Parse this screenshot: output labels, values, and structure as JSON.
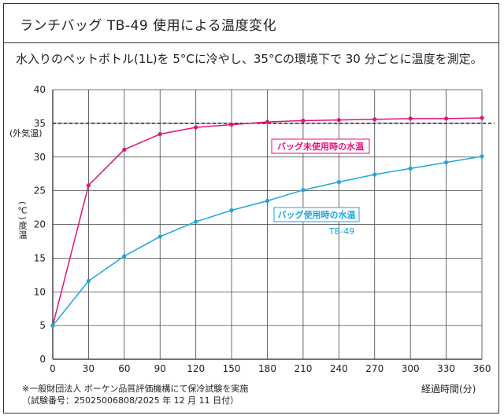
{
  "header": {
    "title": "ランチバッグ TB-49 使用による温度変化"
  },
  "subtitle": "水入りのペットボトル(1L)を 5°Cに冷やし、35°Cの環境下で 30 分ごとに温度を測定。",
  "notes": {
    "line1": "※一般財団法人 ボーケン品質評価機構にて保冷試験を実施",
    "line2": "（試験番号：25025006808/2025 年 12 月 11 日付）"
  },
  "chart_data": {
    "type": "line",
    "xlabel": "経過時間(分)",
    "ylabel": "(℃)度温",
    "x": [
      0,
      30,
      60,
      90,
      120,
      150,
      180,
      210,
      240,
      270,
      300,
      330,
      360
    ],
    "xlim": [
      0,
      360
    ],
    "ylim": [
      0,
      40
    ],
    "yticks": [
      0,
      5,
      10,
      15,
      20,
      25,
      30,
      35,
      40
    ],
    "grid": true,
    "reference_line": {
      "value": 35,
      "label": "(外気温)",
      "color": "#222222",
      "style": "dashed"
    },
    "series": [
      {
        "name": "バッグ未使用時の水温",
        "color": "#e2137a",
        "values": [
          5,
          25.8,
          31.1,
          33.4,
          34.4,
          34.8,
          35.2,
          35.4,
          35.5,
          35.6,
          35.7,
          35.7,
          35.8
        ]
      },
      {
        "name": "バッグ使用時の水温",
        "sublabel": "TB-49",
        "color": "#1ba7e0",
        "values": [
          5,
          11.6,
          15.3,
          18.2,
          20.4,
          22.1,
          23.5,
          25.1,
          26.3,
          27.4,
          28.3,
          29.2,
          30.1
        ]
      }
    ]
  }
}
